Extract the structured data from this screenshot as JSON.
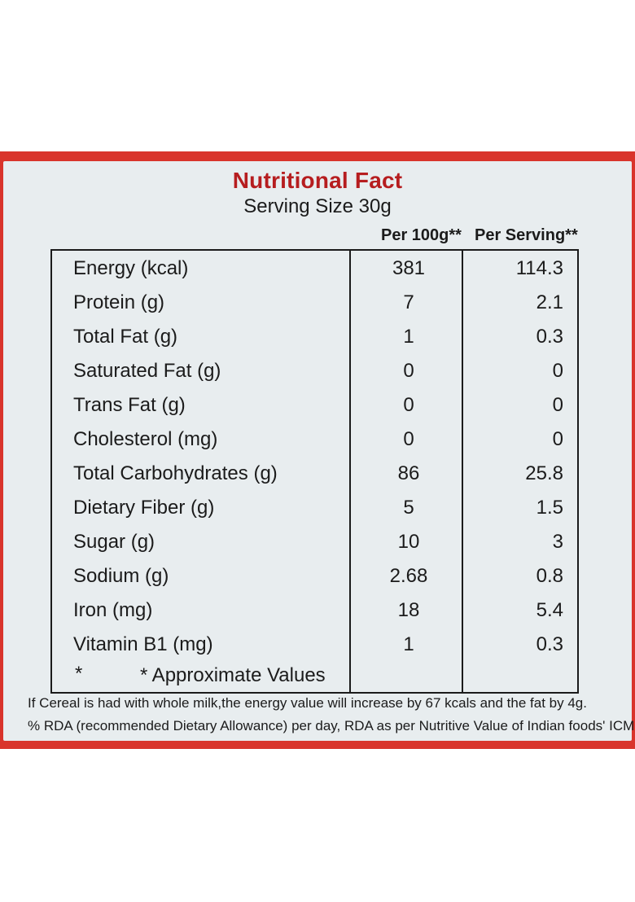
{
  "header": {
    "title": "Nutritional Fact",
    "serving": "Serving Size 30g"
  },
  "table": {
    "col_per100": "Per 100g**",
    "col_serving": "Per Serving**",
    "rows": [
      {
        "name": "Energy (kcal)",
        "per100": "381",
        "serving": "114.3"
      },
      {
        "name": "Protein (g)",
        "per100": "7",
        "serving": "2.1"
      },
      {
        "name": "Total Fat (g)",
        "per100": "1",
        "serving": "0.3"
      },
      {
        "name": "Saturated Fat (g)",
        "per100": "0",
        "serving": "0"
      },
      {
        "name": "Trans Fat (g)",
        "per100": "0",
        "serving": "0"
      },
      {
        "name": "Cholesterol (mg)",
        "per100": "0",
        "serving": "0"
      },
      {
        "name": "Total Carbohydrates (g)",
        "per100": "86",
        "serving": "25.8"
      },
      {
        "name": "Dietary Fiber (g)",
        "per100": "5",
        "serving": "1.5"
      },
      {
        "name": "Sugar (g)",
        "per100": "10",
        "serving": "3"
      },
      {
        "name": "Sodium (g)",
        "per100": "2.68",
        "serving": "0.8"
      },
      {
        "name": "Iron (mg)",
        "per100": "18",
        "serving": "5.4"
      },
      {
        "name": "Vitamin B1 (mg)",
        "per100": "1",
        "serving": "0.3"
      }
    ],
    "approx_star": "*",
    "approx_text": "* Approximate Values"
  },
  "footer": {
    "line1": "If Cereal is had with whole milk,the energy value will increase by 67 kcals and the fat by 4g.",
    "line2": "% RDA (recommended Dietary Allowance) per day, RDA as per Nutritive Value of Indian foods' ICMR"
  },
  "colors": {
    "pack_red": "#d9342b",
    "title_red": "#b61d1f",
    "label_bg": "#e8edef"
  }
}
